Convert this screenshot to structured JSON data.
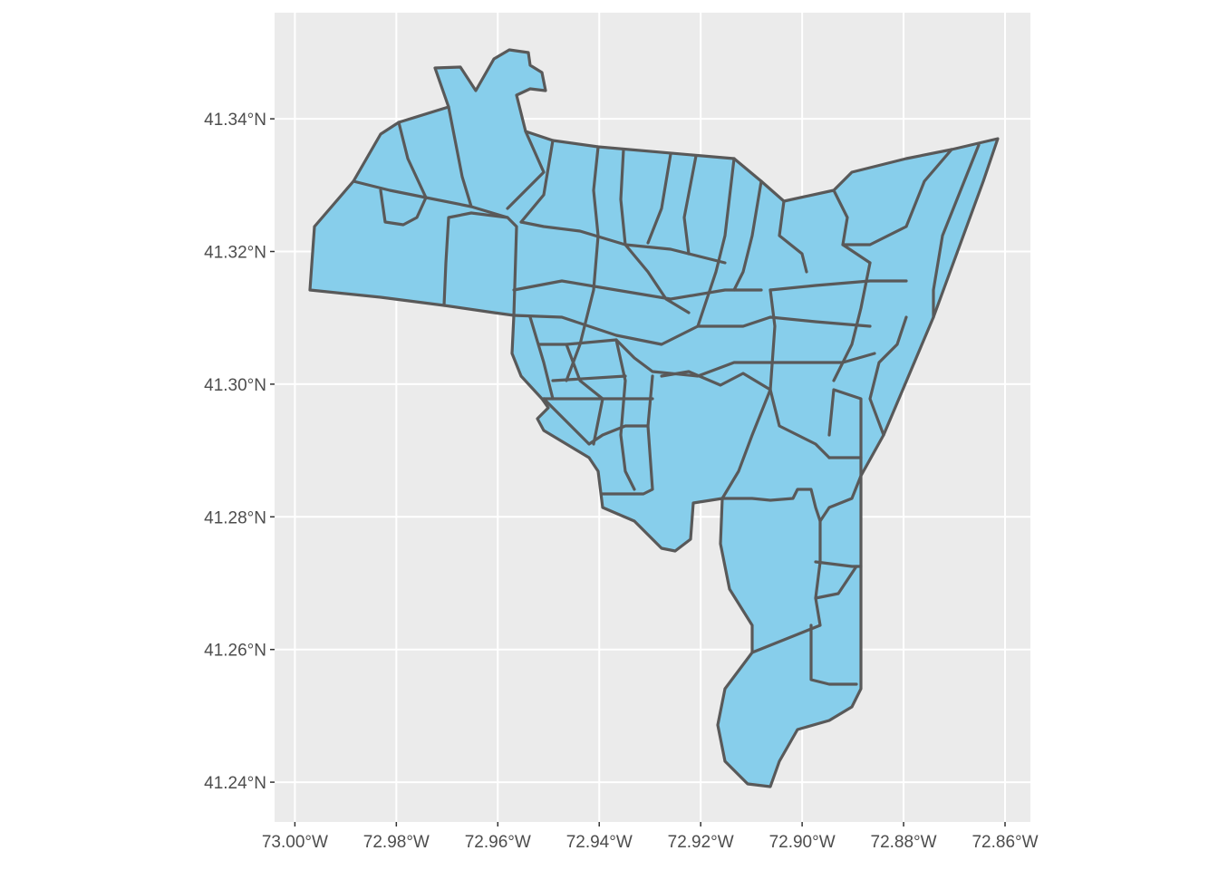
{
  "map": {
    "type": "choropleth-outline",
    "fill_color": "#87CEEB",
    "border_color": "#595959",
    "panel_background": "#EBEBEB",
    "grid_color": "#FFFFFF",
    "grid": true,
    "x_ticks": [
      {
        "value": -73.0,
        "label": "73.00°W"
      },
      {
        "value": -72.98,
        "label": "72.98°W"
      },
      {
        "value": -72.96,
        "label": "72.96°W"
      },
      {
        "value": -72.94,
        "label": "72.94°W"
      },
      {
        "value": -72.92,
        "label": "72.92°W"
      },
      {
        "value": -72.9,
        "label": "72.90°W"
      },
      {
        "value": -72.88,
        "label": "72.88°W"
      },
      {
        "value": -72.86,
        "label": "72.86°W"
      }
    ],
    "y_ticks": [
      {
        "value": 41.34,
        "label": "41.34°N"
      },
      {
        "value": 41.32,
        "label": "41.32°N"
      },
      {
        "value": 41.3,
        "label": "41.30°N"
      },
      {
        "value": 41.28,
        "label": "41.28°N"
      },
      {
        "value": 41.26,
        "label": "41.26°N"
      },
      {
        "value": 41.24,
        "label": "41.24°N"
      }
    ],
    "xlim": [
      -73.004,
      -72.855
    ],
    "ylim": [
      41.234,
      41.356
    ]
  }
}
